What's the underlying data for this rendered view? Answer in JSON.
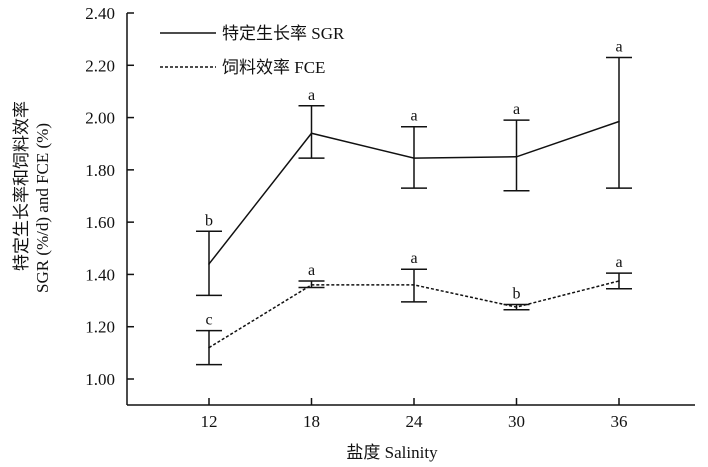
{
  "chart_data": {
    "type": "line",
    "title": "",
    "xlabel": "盐度  Salinity",
    "ylabel": [
      "特定生长率和饲料效率",
      "SGR (%/d) and FCE (%)"
    ],
    "x": [
      12,
      18,
      24,
      30,
      36
    ],
    "x_ticks": [
      "12",
      "18",
      "24",
      "30",
      "36"
    ],
    "ylim": [
      1.0,
      2.4
    ],
    "y_ticks": [
      "1.00",
      "1.20",
      "1.40",
      "1.60",
      "1.80",
      "2.00",
      "2.20",
      "2.40"
    ],
    "legend_position": "top-left",
    "series": [
      {
        "name": "特定生长率 SGR",
        "style": "solid",
        "values": [
          1.44,
          1.94,
          1.845,
          1.85,
          1.985
        ],
        "error_low": [
          1.32,
          1.845,
          1.73,
          1.72,
          1.73
        ],
        "error_high": [
          1.565,
          2.045,
          1.965,
          1.99,
          2.23
        ],
        "sig_labels": [
          "b",
          "a",
          "a",
          "a",
          "a"
        ]
      },
      {
        "name": "饲料效率 FCE",
        "style": "dashed",
        "values": [
          1.12,
          1.36,
          1.36,
          1.275,
          1.375
        ],
        "error_low": [
          1.055,
          1.35,
          1.295,
          1.265,
          1.345
        ],
        "error_high": [
          1.185,
          1.375,
          1.42,
          1.285,
          1.405
        ],
        "sig_labels": [
          "c",
          "a",
          "a",
          "b",
          "a"
        ]
      }
    ]
  }
}
